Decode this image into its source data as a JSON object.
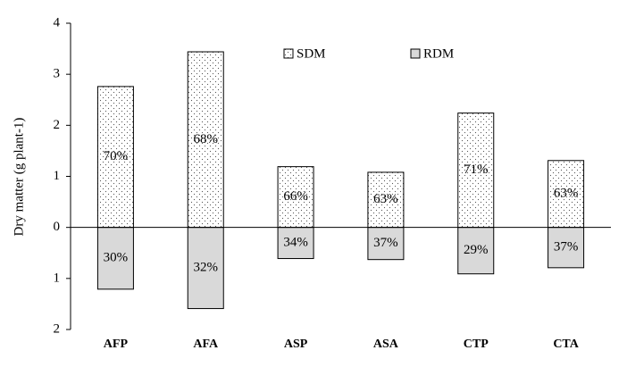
{
  "chart_data": {
    "type": "bar",
    "stacked": "diverging",
    "y_label": "Dry matter  (g plant-1)",
    "categories": [
      "AFP",
      "AFA",
      "ASP",
      "ASA",
      "CTP",
      "CTA"
    ],
    "series": [
      {
        "name": "SDM",
        "color": "#ffffff",
        "pattern": "dots",
        "values": [
          2.76,
          3.44,
          1.19,
          1.08,
          2.24,
          1.31
        ],
        "labels": [
          "70%",
          "68%",
          "66%",
          "63%",
          "71%",
          "63%"
        ]
      },
      {
        "name": "RDM",
        "color": "#d9d9d9",
        "values": [
          -1.21,
          -1.59,
          -0.61,
          -0.63,
          -0.91,
          -0.79
        ],
        "labels": [
          "30%",
          "32%",
          "34%",
          "37%",
          "29%",
          "37%"
        ]
      }
    ],
    "ylim": [
      -2,
      4
    ],
    "yticks": [
      {
        "value": -2,
        "label": "2"
      },
      {
        "value": -1,
        "label": "1"
      },
      0,
      1,
      2,
      3,
      4
    ],
    "legend": "top"
  }
}
